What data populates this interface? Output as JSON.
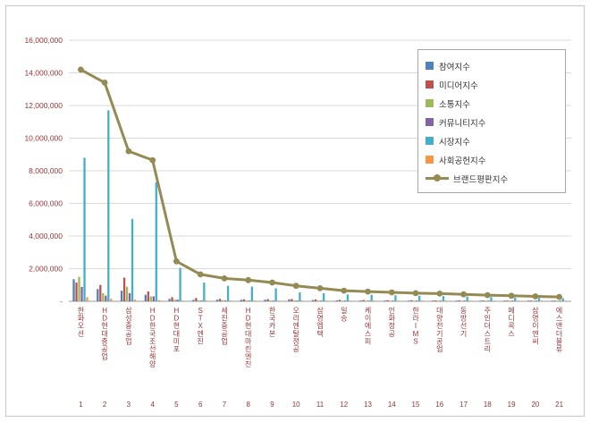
{
  "chart_data": {
    "type": "bar",
    "subtype": "grouped-bars-with-line-overlay",
    "title": "",
    "grid": true,
    "legend_position": "top-right",
    "categories": [
      "한화오션",
      "HD현대중공업",
      "삼성중공업",
      "HD한국조선해양",
      "HD현대미포",
      "STX엔진",
      "세진중공업",
      "HD현대마린엔진",
      "한국카본",
      "오리엔탈정공",
      "삼영엠텍",
      "일승",
      "케이에스피",
      "인화정공",
      "한라IMS",
      "대양전기공업",
      "동방선기",
      "주인더스트리",
      "메디콕스",
      "삼영이엔씨",
      "에스앤더블류"
    ],
    "ranks": [
      "1",
      "2",
      "3",
      "4",
      "5",
      "6",
      "7",
      "8",
      "9",
      "10",
      "11",
      "12",
      "13",
      "14",
      "15",
      "16",
      "17",
      "18",
      "19",
      "20",
      "21"
    ],
    "y_axis": {
      "min": 0,
      "max": 16000000,
      "step": 2000000,
      "tick_labels": [
        "16,000,000",
        "14,000,000",
        "12,000,000",
        "10,000,000",
        "8,000,000",
        "6,000,000",
        "4,000,000",
        "2,000,000",
        "-"
      ]
    },
    "series": [
      {
        "name": "참여지수",
        "type": "bar",
        "color": "#4F81BD",
        "values": [
          1350000,
          750000,
          650000,
          400000,
          150000,
          90000,
          100000,
          90000,
          100000,
          120000,
          80000,
          60000,
          50000,
          45000,
          40000,
          40000,
          35000,
          30000,
          28000,
          25000,
          22000
        ]
      },
      {
        "name": "미디어지수",
        "type": "bar",
        "color": "#C0504D",
        "values": [
          1150000,
          1000000,
          1450000,
          600000,
          250000,
          200000,
          150000,
          120000,
          130000,
          140000,
          110000,
          90000,
          80000,
          70000,
          65000,
          60000,
          55000,
          50000,
          45000,
          40000,
          35000
        ]
      },
      {
        "name": "소통지수",
        "type": "bar",
        "color": "#9BBB59",
        "values": [
          1500000,
          500000,
          900000,
          300000,
          100000,
          60000,
          70000,
          60000,
          50000,
          60000,
          40000,
          30000,
          30000,
          25000,
          25000,
          20000,
          18000,
          15000,
          14000,
          12000,
          10000
        ]
      },
      {
        "name": "커뮤니티지수",
        "type": "bar",
        "color": "#8064A2",
        "values": [
          880000,
          350000,
          500000,
          300000,
          100000,
          50000,
          50000,
          40000,
          40000,
          40000,
          30000,
          25000,
          20000,
          20000,
          18000,
          15000,
          14000,
          12000,
          10000,
          9000,
          8000
        ]
      },
      {
        "name": "시장지수",
        "type": "bar",
        "color": "#44AFCB",
        "values": [
          8800000,
          11700000,
          5050000,
          7300000,
          2050000,
          1150000,
          950000,
          900000,
          800000,
          550000,
          500000,
          420000,
          400000,
          370000,
          340000,
          320000,
          295000,
          260000,
          230000,
          205000,
          185000
        ]
      },
      {
        "name": "사회공헌지수",
        "type": "bar",
        "color": "#F79646",
        "values": [
          250000,
          150000,
          100000,
          80000,
          30000,
          30000,
          20000,
          20000,
          20000,
          20000,
          15000,
          10000,
          10000,
          10000,
          8000,
          8000,
          7000,
          6000,
          5000,
          5000,
          4000
        ]
      },
      {
        "name": "브랜드평판지수",
        "type": "line",
        "color": "#948A54",
        "values": [
          14200000,
          13400000,
          9200000,
          8650000,
          2450000,
          1650000,
          1400000,
          1300000,
          1150000,
          950000,
          800000,
          650000,
          600000,
          550000,
          500000,
          470000,
          430000,
          380000,
          340000,
          300000,
          270000
        ]
      }
    ]
  }
}
